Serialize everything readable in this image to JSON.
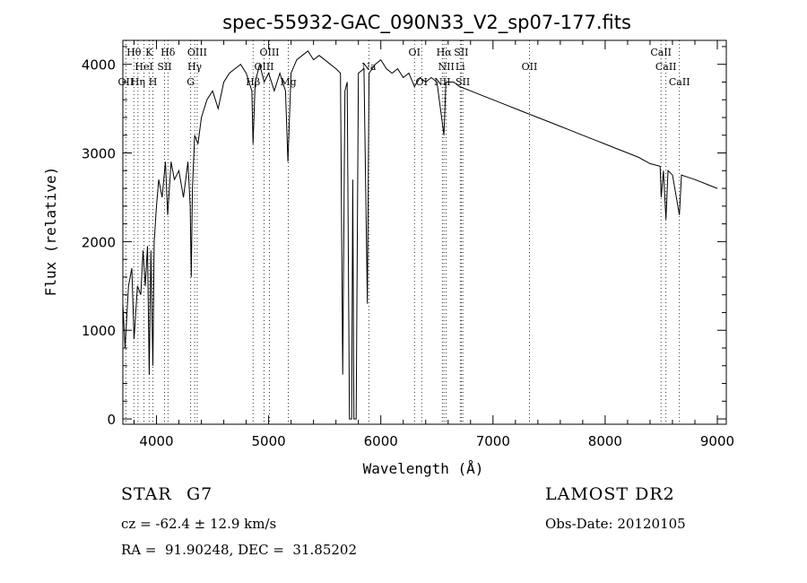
{
  "chart_data": {
    "type": "line",
    "title": "spec-55932-GAC_090N33_V2_sp07-177.fits",
    "xlabel": "Wavelength (Å)",
    "ylabel": "Flux (relative)",
    "xlim": [
      3700,
      9080
    ],
    "ylim": [
      -60,
      4270
    ],
    "xticks": [
      4000,
      5000,
      6000,
      7000,
      8000,
      9000
    ],
    "yticks": [
      0,
      1000,
      2000,
      3000,
      4000
    ],
    "grid": false,
    "series": [
      {
        "name": "spectrum",
        "x": [
          3700,
          3720,
          3750,
          3780,
          3800,
          3830,
          3860,
          3880,
          3900,
          3920,
          3935,
          3950,
          3968,
          3980,
          4000,
          4020,
          4050,
          4080,
          4100,
          4130,
          4160,
          4200,
          4240,
          4280,
          4300,
          4310,
          4320,
          4340,
          4370,
          4400,
          4450,
          4500,
          4550,
          4600,
          4650,
          4700,
          4750,
          4800,
          4850,
          4861,
          4880,
          4920,
          4960,
          5000,
          5050,
          5100,
          5150,
          5172,
          5200,
          5250,
          5300,
          5350,
          5400,
          5450,
          5500,
          5550,
          5600,
          5640,
          5660,
          5680,
          5700,
          5720,
          5740,
          5750,
          5760,
          5780,
          5800,
          5850,
          5880,
          5895,
          5950,
          6000,
          6050,
          6100,
          6150,
          6200,
          6250,
          6300,
          6350,
          6400,
          6450,
          6500,
          6563,
          6580,
          6650,
          6700,
          6800,
          6900,
          7000,
          7100,
          7200,
          7300,
          7400,
          7500,
          7600,
          7700,
          7800,
          7900,
          8000,
          8100,
          8200,
          8300,
          8400,
          8490,
          8500,
          8520,
          8542,
          8560,
          8600,
          8662,
          8680,
          8800,
          8900,
          9000
        ],
        "y": [
          1300,
          800,
          1500,
          1700,
          900,
          1500,
          1400,
          1900,
          1500,
          1950,
          500,
          1900,
          600,
          2000,
          2400,
          2700,
          2500,
          2900,
          2300,
          2900,
          2700,
          2800,
          2500,
          2900,
          2400,
          1600,
          2600,
          3200,
          3100,
          3400,
          3600,
          3700,
          3500,
          3800,
          3900,
          3950,
          4000,
          3900,
          3700,
          3100,
          3800,
          4000,
          3800,
          3900,
          3700,
          3900,
          3700,
          2900,
          3900,
          4050,
          4100,
          4150,
          4050,
          4100,
          4050,
          4000,
          3950,
          3900,
          500,
          3700,
          3800,
          0,
          0,
          2700,
          0,
          0,
          3900,
          3950,
          1300,
          3900,
          4000,
          4050,
          3950,
          3900,
          3950,
          3850,
          3900,
          3750,
          3850,
          3800,
          3850,
          3800,
          3200,
          3800,
          3800,
          3750,
          3700,
          3650,
          3600,
          3550,
          3500,
          3450,
          3400,
          3350,
          3300,
          3250,
          3200,
          3150,
          3100,
          3050,
          3000,
          2950,
          2880,
          2850,
          2500,
          2800,
          2250,
          2800,
          2750,
          2300,
          2750,
          2700,
          2650,
          2600
        ]
      }
    ],
    "line_markers": [
      {
        "label": "Hθ",
        "wl": 3798,
        "row": 1
      },
      {
        "label": "K",
        "wl": 3934,
        "row": 1
      },
      {
        "label": "Hδ",
        "wl": 4102,
        "row": 1
      },
      {
        "label": "OIII",
        "wl": 4363,
        "row": 1
      },
      {
        "label": "OIII",
        "wl": 5007,
        "row": 1
      },
      {
        "label": "OI",
        "wl": 6300,
        "row": 1
      },
      {
        "label": "Hα",
        "wl": 6563,
        "row": 1
      },
      {
        "label": "SII",
        "wl": 6717,
        "row": 1
      },
      {
        "label": "CaII",
        "wl": 8498,
        "row": 1
      },
      {
        "label": "HeI",
        "wl": 3889,
        "row": 2
      },
      {
        "label": "SII",
        "wl": 4072,
        "row": 2
      },
      {
        "label": "Hγ",
        "wl": 4340,
        "row": 2
      },
      {
        "label": "OIII",
        "wl": 4959,
        "row": 2
      },
      {
        "label": "Na",
        "wl": 5893,
        "row": 2
      },
      {
        "label": "NII",
        "wl": 6583,
        "row": 2
      },
      {
        "label": "Li",
        "wl": 6708,
        "row": 2
      },
      {
        "label": "OII",
        "wl": 7325,
        "row": 2
      },
      {
        "label": "CaII",
        "wl": 8542,
        "row": 2
      },
      {
        "label": "OII",
        "wl": 3727,
        "row": 3
      },
      {
        "label": "Hη",
        "wl": 3835,
        "row": 3
      },
      {
        "label": "H",
        "wl": 3968,
        "row": 3
      },
      {
        "label": "G",
        "wl": 4305,
        "row": 3
      },
      {
        "label": "Hβ",
        "wl": 4861,
        "row": 3
      },
      {
        "label": "Mg",
        "wl": 5175,
        "row": 3
      },
      {
        "label": "OI",
        "wl": 6364,
        "row": 3
      },
      {
        "label": "NII",
        "wl": 6548,
        "row": 3
      },
      {
        "label": "SII",
        "wl": 6731,
        "row": 3
      },
      {
        "label": "CaII",
        "wl": 8662,
        "row": 3
      }
    ]
  },
  "info": {
    "class_label": "STAR",
    "subclass": "G7",
    "survey": "LAMOST DR2",
    "cz": "cz = -62.4 ± 12.9 km/s",
    "obs_date": "Obs-Date: 20120105",
    "coords": "RA =  91.90248, DEC =  31.85202"
  }
}
